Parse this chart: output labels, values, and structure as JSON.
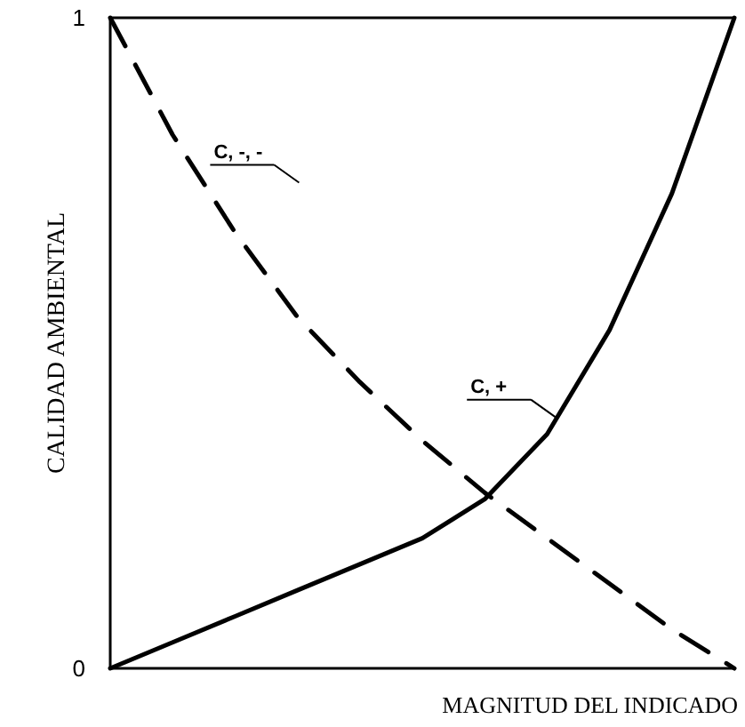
{
  "chart_data": {
    "type": "line",
    "xlabel": "MAGNITUD DEL INDICADO",
    "ylabel": "CALIDAD AMBIENTAL",
    "categories": [
      null,
      null,
      null,
      null,
      null,
      null,
      null,
      null,
      null,
      null,
      null
    ],
    "ylim": [
      0,
      1
    ],
    "yticks": [
      0,
      1
    ],
    "marker": "none",
    "series": [
      {
        "name": "C, -, -",
        "color": "#000000",
        "line_style": "dashed",
        "values": [
          1,
          0.82,
          0.67,
          0.54,
          0.44,
          0.35,
          0.27,
          0.2,
          0.13,
          0.06,
          0
        ]
      },
      {
        "name": "C, +",
        "color": "#000000",
        "line_style": "solid",
        "values": [
          0,
          0.04,
          0.08,
          0.12,
          0.16,
          0.2,
          0.26,
          0.36,
          0.52,
          0.73,
          1
        ]
      }
    ]
  }
}
